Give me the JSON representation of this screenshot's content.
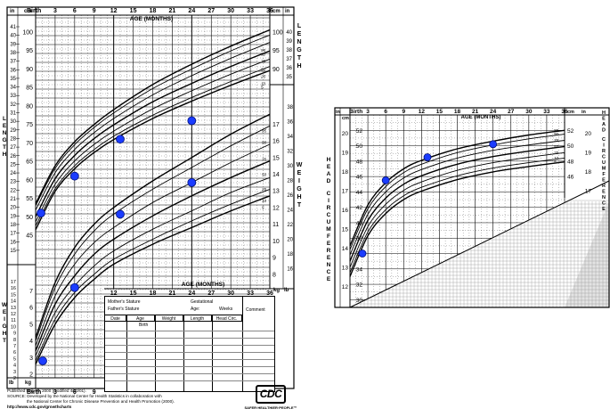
{
  "chart_data": [
    {
      "type": "line",
      "chart": "length-and-weight",
      "x_title_top": "AGE (MONTHS)",
      "x_title_bottom": "AGE (MONTHS)",
      "x_ticks_top": [
        "Birth",
        "3",
        "6",
        "9",
        "12",
        "15",
        "18",
        "21",
        "24",
        "27",
        "30",
        "33",
        "36"
      ],
      "x_ticks_bottom": [
        "Birth",
        "3",
        "6",
        "9"
      ],
      "x_ticks_mid": [
        "12",
        "15",
        "18",
        "21",
        "24",
        "27",
        "30",
        "33",
        "36"
      ],
      "xlim": [
        0,
        36
      ],
      "length_axis": {
        "title": "LENGTH",
        "cm_ticks": [
          "100",
          "95",
          "90",
          "85",
          "80",
          "75",
          "70",
          "65",
          "60",
          "55",
          "50",
          "45"
        ],
        "in_ticks": [
          "41",
          "40",
          "39",
          "38",
          "37",
          "36",
          "35",
          "34",
          "33",
          "32",
          "31",
          "30",
          "29",
          "28",
          "27",
          "26",
          "25",
          "24",
          "23",
          "22",
          "21",
          "20",
          "19",
          "18",
          "17",
          "16",
          "15"
        ],
        "right_cm_ticks": [
          "100",
          "95",
          "90"
        ],
        "right_in_ticks": [
          "40",
          "39",
          "38",
          "37",
          "36",
          "35"
        ]
      },
      "weight_axis": {
        "title": "WEIGHT",
        "kg_ticks_right": [
          "17",
          "16",
          "15",
          "14",
          "13",
          "12",
          "11",
          "10",
          "9",
          "8"
        ],
        "lb_ticks_right": [
          "38",
          "36",
          "34",
          "32",
          "30",
          "28",
          "26",
          "24",
          "22",
          "20",
          "18",
          "16"
        ],
        "kg_ticks_left": [
          "7",
          "6",
          "5",
          "4",
          "3",
          "2"
        ],
        "lb_ticks_left": [
          "16",
          "15",
          "14",
          "13",
          "12",
          "11",
          "10",
          "9",
          "8",
          "7",
          "6",
          "5",
          "4"
        ],
        "in_ticks_left": [
          "17",
          "16",
          "15",
          "14",
          "13",
          "12",
          "11",
          "10",
          "9",
          "8",
          "7",
          "6",
          "5",
          "4",
          "3",
          "2"
        ]
      },
      "unit_labels": {
        "cm": "cm",
        "in": "in",
        "kg": "kg",
        "lb": "lb"
      },
      "percentiles": [
        "95",
        "90",
        "75",
        "50",
        "25",
        "10",
        "5"
      ],
      "length_series": [
        {
          "name": "95",
          "x": [
            0,
            3,
            6,
            9,
            12,
            18,
            24,
            30,
            36
          ],
          "values": [
            53.5,
            63.8,
            70.3,
            75.0,
            79.0,
            85.8,
            91.3,
            96.2,
            100.6
          ]
        },
        {
          "name": "90",
          "x": [
            0,
            3,
            6,
            9,
            12,
            18,
            24,
            30,
            36
          ],
          "values": [
            53.0,
            63.1,
            69.5,
            74.2,
            78.1,
            84.7,
            90.0,
            94.9,
            99.2
          ]
        },
        {
          "name": "75",
          "x": [
            0,
            3,
            6,
            9,
            12,
            18,
            24,
            30,
            36
          ],
          "values": [
            51.8,
            61.9,
            68.2,
            72.8,
            76.6,
            83.0,
            88.2,
            92.9,
            97.2
          ]
        },
        {
          "name": "50",
          "x": [
            0,
            3,
            6,
            9,
            12,
            18,
            24,
            30,
            36
          ],
          "values": [
            50.0,
            60.3,
            66.6,
            71.2,
            74.9,
            81.1,
            86.1,
            90.7,
            94.9
          ]
        },
        {
          "name": "25",
          "x": [
            0,
            3,
            6,
            9,
            12,
            18,
            24,
            30,
            36
          ],
          "values": [
            48.6,
            58.8,
            65.1,
            69.6,
            73.2,
            79.2,
            84.1,
            88.6,
            92.7
          ]
        },
        {
          "name": "10",
          "x": [
            0,
            3,
            6,
            9,
            12,
            18,
            24,
            30,
            36
          ],
          "values": [
            47.5,
            57.6,
            63.8,
            68.2,
            71.8,
            77.5,
            82.3,
            86.6,
            90.7
          ]
        },
        {
          "name": "5",
          "x": [
            0,
            3,
            6,
            9,
            12,
            18,
            24,
            30,
            36
          ],
          "values": [
            46.5,
            56.9,
            63.0,
            67.4,
            70.9,
            76.6,
            81.3,
            85.6,
            89.6
          ]
        }
      ],
      "weight_series": [
        {
          "name": "95",
          "x": [
            0,
            3,
            6,
            9,
            12,
            18,
            24,
            30,
            36
          ],
          "values": [
            4.2,
            7.5,
            9.6,
            11.0,
            12.0,
            13.6,
            15.0,
            16.4,
            17.6
          ]
        },
        {
          "name": "90",
          "x": [
            0,
            3,
            6,
            9,
            12,
            18,
            24,
            30,
            36
          ],
          "values": [
            4.0,
            7.2,
            9.2,
            10.6,
            11.6,
            13.1,
            14.4,
            15.7,
            16.9
          ]
        },
        {
          "name": "75",
          "x": [
            0,
            3,
            6,
            9,
            12,
            18,
            24,
            30,
            36
          ],
          "values": [
            3.7,
            6.7,
            8.6,
            9.9,
            10.8,
            12.3,
            13.5,
            14.7,
            15.8
          ]
        },
        {
          "name": "50",
          "x": [
            0,
            3,
            6,
            9,
            12,
            18,
            24,
            30,
            36
          ],
          "values": [
            3.4,
            6.2,
            7.9,
            9.2,
            10.1,
            11.5,
            12.7,
            13.8,
            14.8
          ]
        },
        {
          "name": "25",
          "x": [
            0,
            3,
            6,
            9,
            12,
            18,
            24,
            30,
            36
          ],
          "values": [
            3.1,
            5.7,
            7.3,
            8.5,
            9.4,
            10.7,
            11.8,
            12.9,
            13.8
          ]
        },
        {
          "name": "10",
          "x": [
            0,
            3,
            6,
            9,
            12,
            18,
            24,
            30,
            36
          ],
          "values": [
            2.8,
            5.3,
            6.9,
            8.0,
            8.9,
            10.1,
            11.2,
            12.2,
            13.1
          ]
        },
        {
          "name": "5",
          "x": [
            0,
            3,
            6,
            9,
            12,
            18,
            24,
            30,
            36
          ],
          "values": [
            2.6,
            5.0,
            6.6,
            7.7,
            8.6,
            9.8,
            10.8,
            11.8,
            12.7
          ]
        }
      ],
      "measurements_length": {
        "x": [
          0,
          6,
          13,
          24
        ],
        "values": [
          51,
          61,
          71,
          76
        ]
      },
      "measurements_weight": {
        "x": [
          0,
          6,
          13,
          24
        ],
        "values": [
          2.8,
          7.2,
          11.6,
          13.5
        ]
      }
    },
    {
      "type": "line",
      "chart": "head-circumference",
      "title": "HEAD CIRCUMFERENCE",
      "x_title": "AGE (MONTHS)",
      "x_ticks": [
        "Birth",
        "3",
        "6",
        "9",
        "12",
        "15",
        "18",
        "21",
        "24",
        "27",
        "30",
        "33",
        "36"
      ],
      "xlim": [
        0,
        36
      ],
      "ylim": [
        29,
        54
      ],
      "cm_ticks_left": [
        "52",
        "50",
        "48",
        "46",
        "44",
        "42",
        "40",
        "38",
        "36",
        "34",
        "32",
        "30"
      ],
      "in_ticks_left": [
        "20",
        "19",
        "18",
        "17",
        "16",
        "15",
        "14",
        "13",
        "12"
      ],
      "cm_ticks_right": [
        "52",
        "50",
        "48",
        "46"
      ],
      "in_ticks_right": [
        "20",
        "19",
        "18",
        "17"
      ],
      "percentiles": [
        "95",
        "90",
        "75",
        "50",
        "25",
        "10",
        "5"
      ],
      "series": [
        {
          "name": "95",
          "x": [
            0,
            3,
            6,
            9,
            12,
            18,
            24,
            30,
            36
          ],
          "values": [
            37.0,
            42.3,
            45.2,
            47.0,
            48.1,
            49.6,
            50.6,
            51.4,
            52.0
          ]
        },
        {
          "name": "90",
          "x": [
            0,
            3,
            6,
            9,
            12,
            18,
            24,
            30,
            36
          ],
          "values": [
            36.5,
            41.8,
            44.7,
            46.5,
            47.6,
            49.1,
            50.1,
            50.9,
            51.5
          ]
        },
        {
          "name": "75",
          "x": [
            0,
            3,
            6,
            9,
            12,
            18,
            24,
            30,
            36
          ],
          "values": [
            35.8,
            41.1,
            44.0,
            45.8,
            46.9,
            48.4,
            49.4,
            50.1,
            50.7
          ]
        },
        {
          "name": "50",
          "x": [
            0,
            3,
            6,
            9,
            12,
            18,
            24,
            30,
            36
          ],
          "values": [
            35.0,
            40.3,
            43.2,
            45.0,
            46.1,
            47.6,
            48.6,
            49.3,
            49.9
          ]
        },
        {
          "name": "25",
          "x": [
            0,
            3,
            6,
            9,
            12,
            18,
            24,
            30,
            36
          ],
          "values": [
            34.2,
            39.5,
            42.4,
            44.2,
            45.3,
            46.8,
            47.8,
            48.5,
            49.1
          ]
        },
        {
          "name": "10",
          "x": [
            0,
            3,
            6,
            9,
            12,
            18,
            24,
            30,
            36
          ],
          "values": [
            33.5,
            38.8,
            41.7,
            43.5,
            44.6,
            46.1,
            47.1,
            47.8,
            48.4
          ]
        },
        {
          "name": "5",
          "x": [
            0,
            3,
            6,
            9,
            12,
            18,
            24,
            30,
            36
          ],
          "values": [
            33.0,
            38.3,
            41.2,
            43.0,
            44.1,
            45.6,
            46.6,
            47.3,
            47.9
          ]
        }
      ],
      "measurements": {
        "x": [
          0,
          6,
          13,
          24
        ],
        "values": [
          36,
          45.5,
          48.5,
          50.2
        ]
      }
    }
  ],
  "record_table": {
    "mother_stature": "Mother's Stature",
    "gestational": "Gestational",
    "father_stature": "Father's Stature",
    "age": "Age:",
    "weeks": "Weeks",
    "comment": "Comment",
    "columns": [
      "Date",
      "Age",
      "Weight",
      "Length",
      "Head Circ."
    ],
    "birth": "Birth"
  },
  "footer": {
    "published": "Published May 30, 2000 (modified 4/20/01).",
    "source_1": "SOURCE: Developed by the National Center for Health Statistics in collaboration with",
    "source_2": "the National Center for Chronic Disease Prevention and Health Promotion (2000).",
    "url": "http://www.cdc.gov/growthcharts",
    "logo": "CDC",
    "tagline": "SAFER·HEALTHIER·PEOPLE™"
  },
  "colors": {
    "marker": "#1b3cff",
    "marker_stroke": "#00107a",
    "grid": "#000000",
    "hatch": "#9a9a9a"
  }
}
